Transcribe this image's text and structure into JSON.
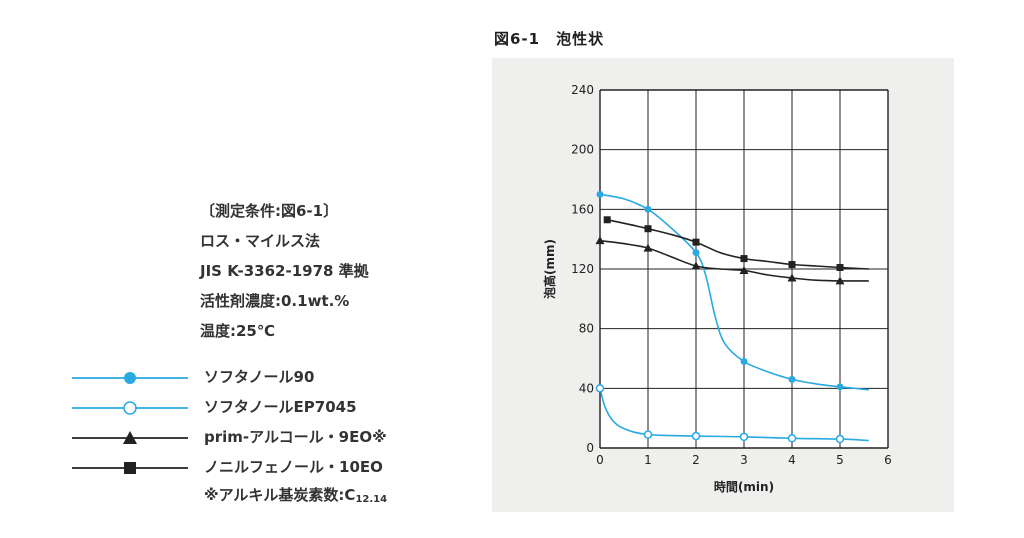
{
  "figure_title": "図6-1　泡性状",
  "conditions": [
    "〔測定条件:図6-1〕",
    "ロス・マイルス法",
    "JIS K-3362-1978 準拠",
    "活性剤濃度:0.1wt.%",
    "温度:25℃"
  ],
  "legend_note": "※アルキル基炭素数:C",
  "legend_note_sub": "12.14",
  "colors": {
    "blue": "#29aae1",
    "black": "#222222",
    "panel": "#efefed"
  },
  "chart_data": {
    "type": "line",
    "xlabel": "時間(min)",
    "ylabel": "泡高(mm)",
    "xlim": [
      0,
      6
    ],
    "ylim": [
      0,
      240
    ],
    "xticks": [
      "0",
      "1",
      "2",
      "3",
      "4",
      "5",
      "6"
    ],
    "yticks": [
      "0",
      "40",
      "80",
      "120",
      "160",
      "200",
      "240"
    ],
    "grid": true,
    "series": [
      {
        "name": "ソフタノール90",
        "color": "#29aae1",
        "marker": "filled-circle",
        "points": [
          [
            0,
            170
          ],
          [
            1,
            160
          ],
          [
            2,
            131
          ],
          [
            3,
            58
          ],
          [
            4,
            46
          ],
          [
            5,
            41
          ]
        ],
        "curve": [
          [
            0,
            170
          ],
          [
            0.5,
            167
          ],
          [
            1,
            160
          ],
          [
            1.5,
            147
          ],
          [
            2,
            131
          ],
          [
            2.2,
            116
          ],
          [
            2.4,
            88
          ],
          [
            2.6,
            70
          ],
          [
            3,
            58
          ],
          [
            3.5,
            51
          ],
          [
            4,
            46
          ],
          [
            4.5,
            43
          ],
          [
            5,
            41
          ],
          [
            5.6,
            39
          ]
        ]
      },
      {
        "name": "ソフタノールEP7045",
        "color": "#29aae1",
        "marker": "open-circle",
        "points": [
          [
            0,
            40
          ],
          [
            1,
            9
          ],
          [
            2,
            8
          ],
          [
            3,
            7.5
          ],
          [
            4,
            6.5
          ],
          [
            5,
            6
          ]
        ],
        "curve": [
          [
            0,
            40
          ],
          [
            0.1,
            28
          ],
          [
            0.25,
            19
          ],
          [
            0.5,
            13
          ],
          [
            1,
            9
          ],
          [
            2,
            8
          ],
          [
            3,
            7.5
          ],
          [
            4,
            6.5
          ],
          [
            5,
            6
          ],
          [
            5.6,
            5
          ]
        ]
      },
      {
        "name": "prim-アルコール・9EO※",
        "color": "#222222",
        "marker": "triangle",
        "points": [
          [
            0,
            139
          ],
          [
            1,
            134
          ],
          [
            2,
            122
          ],
          [
            3,
            119
          ],
          [
            4,
            114
          ],
          [
            5,
            112
          ]
        ],
        "curve": [
          [
            0,
            139
          ],
          [
            0.5,
            137
          ],
          [
            1,
            134
          ],
          [
            1.5,
            128
          ],
          [
            2,
            122
          ],
          [
            2.5,
            120
          ],
          [
            3,
            119
          ],
          [
            3.5,
            116
          ],
          [
            4,
            114
          ],
          [
            4.5,
            112.5
          ],
          [
            5,
            112
          ],
          [
            5.6,
            112
          ]
        ]
      },
      {
        "name": "ノニルフェノール・10EO",
        "color": "#222222",
        "marker": "square",
        "points": [
          [
            0.15,
            153
          ],
          [
            1,
            147
          ],
          [
            2,
            138
          ],
          [
            3,
            127
          ],
          [
            4,
            123
          ],
          [
            5,
            121
          ]
        ],
        "curve": [
          [
            0.15,
            153
          ],
          [
            0.6,
            150
          ],
          [
            1,
            147
          ],
          [
            1.5,
            143
          ],
          [
            2,
            138
          ],
          [
            2.5,
            131
          ],
          [
            3,
            127
          ],
          [
            3.5,
            125
          ],
          [
            4,
            123
          ],
          [
            4.5,
            122
          ],
          [
            5,
            121
          ],
          [
            5.6,
            120
          ]
        ]
      }
    ]
  }
}
